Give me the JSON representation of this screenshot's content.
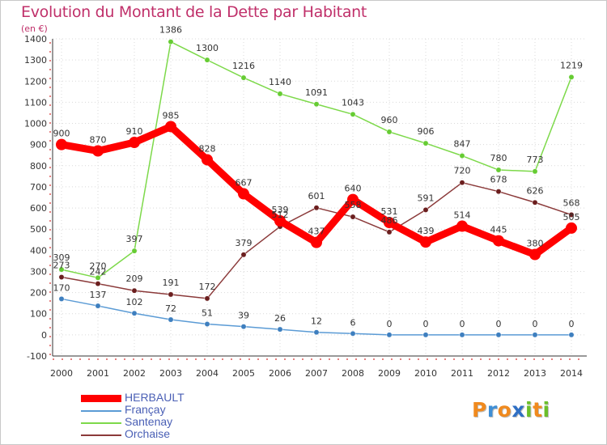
{
  "chart_data": {
    "type": "line",
    "title": "Evolution du Montant de la Dette par Habitant",
    "unit_label": "(en €)",
    "x": [
      "2000",
      "2001",
      "2002",
      "2003",
      "2004",
      "2005",
      "2006",
      "2007",
      "2008",
      "2009",
      "2010",
      "2011",
      "2012",
      "2013",
      "2014"
    ],
    "ylim": [
      -100,
      1400
    ],
    "yticks": [
      -100,
      0,
      100,
      200,
      300,
      400,
      500,
      600,
      700,
      800,
      900,
      1000,
      1100,
      1200,
      1300,
      1400
    ],
    "grid": true,
    "legend_position": "bottom-left",
    "series": [
      {
        "name": "HERBAULT",
        "color": "#ff0000",
        "marker_color": "#ff0000",
        "values": [
          900,
          870,
          910,
          985,
          828,
          667,
          539,
          437,
          640,
          531,
          439,
          514,
          445,
          380,
          505
        ]
      },
      {
        "name": "Françay",
        "color": "#5b9bd5",
        "marker_color": "#3e7fbf",
        "values": [
          170,
          137,
          102,
          72,
          51,
          39,
          26,
          12,
          6,
          0,
          0,
          0,
          0,
          0,
          0
        ]
      },
      {
        "name": "Santenay",
        "color": "#7dd94a",
        "marker_color": "#66cc33",
        "values": [
          309,
          270,
          397,
          1386,
          1300,
          1216,
          1140,
          1091,
          1043,
          960,
          906,
          847,
          780,
          773,
          1219
        ]
      },
      {
        "name": "Orchaise",
        "color": "#8b3a3a",
        "marker_color": "#6b1e1e",
        "values": [
          273,
          242,
          209,
          191,
          172,
          379,
          512,
          601,
          558,
          486,
          591,
          720,
          678,
          626,
          568
        ]
      }
    ]
  },
  "logo": {
    "letters": [
      "P",
      "r",
      "o",
      "x",
      "i",
      "t",
      "i"
    ],
    "colors": [
      "#f08a1e",
      "#3f8fd6",
      "#f08a1e",
      "#2f6fc4",
      "#6bbf2a",
      "#f08a1e",
      "#6bbf2a"
    ]
  }
}
